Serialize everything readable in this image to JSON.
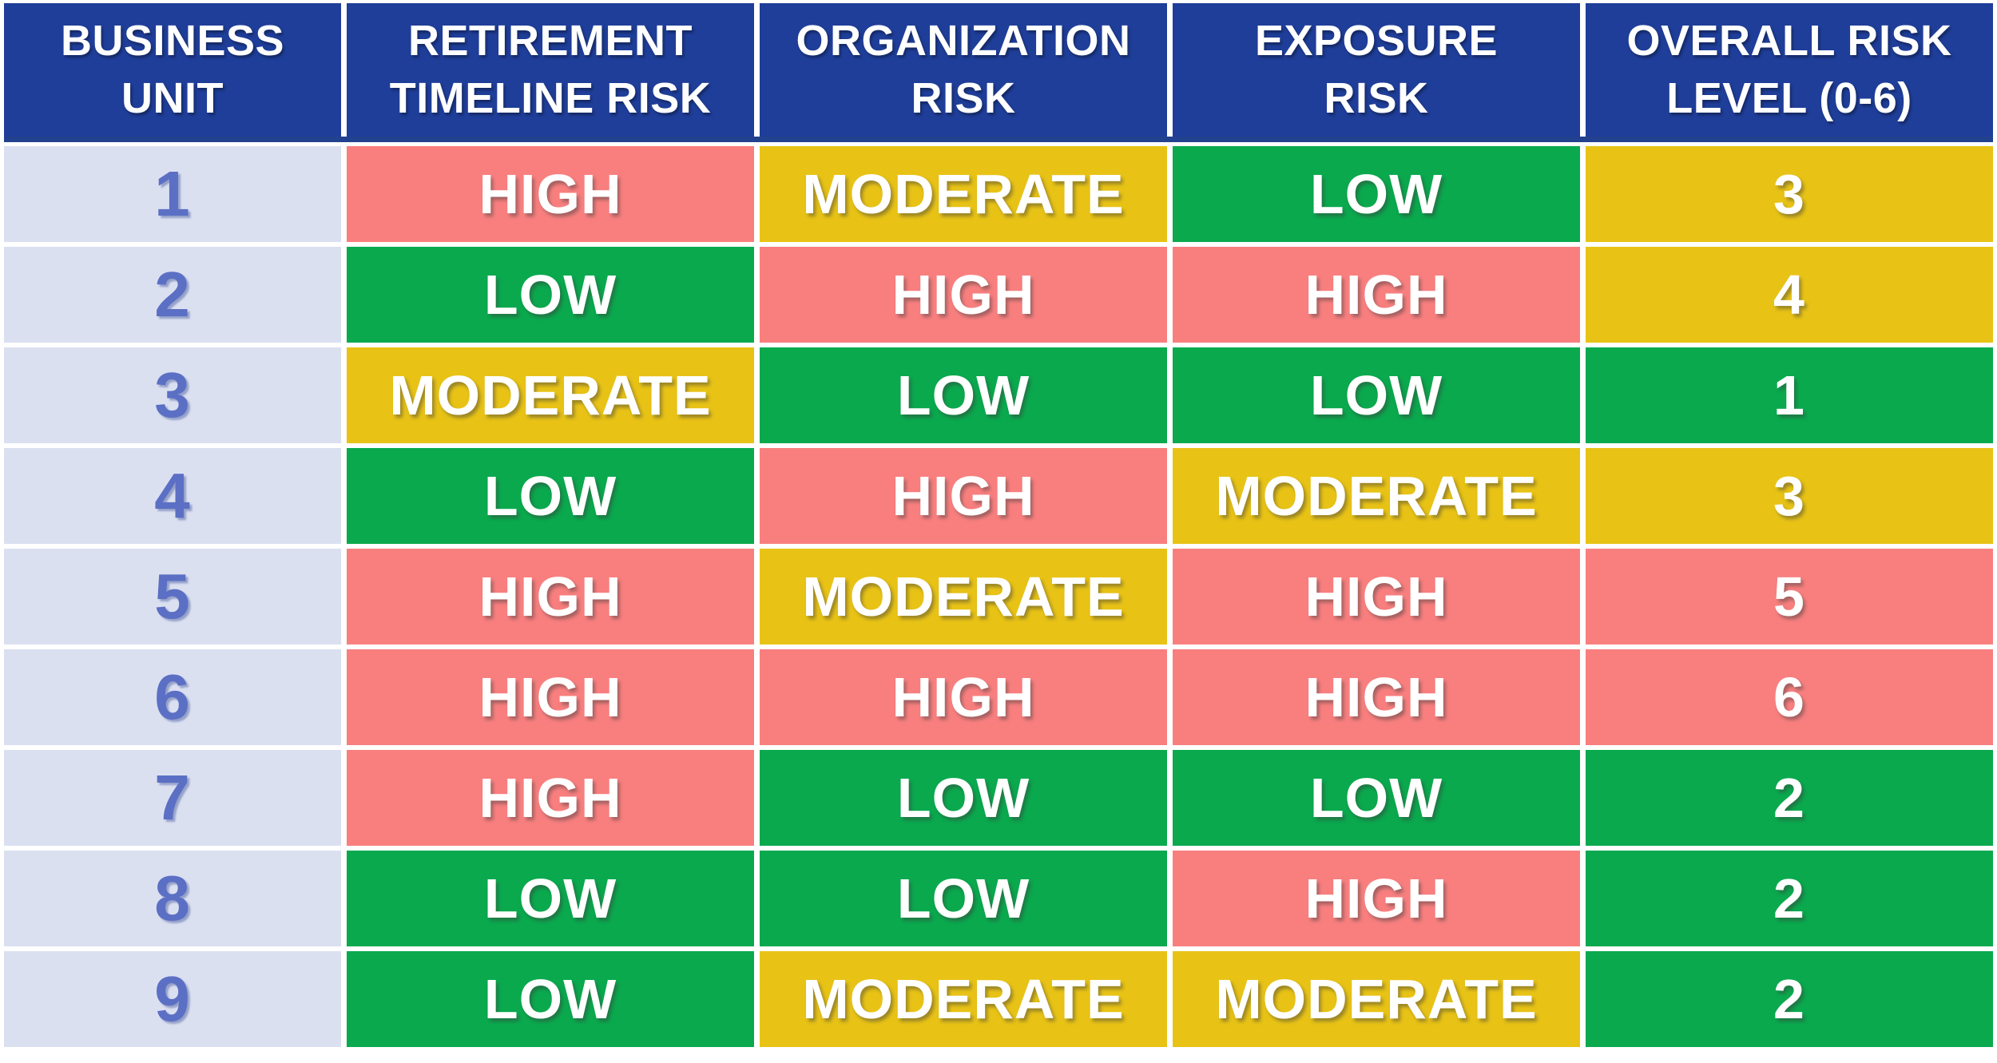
{
  "colors": {
    "header_bg": "#1f3e99",
    "header_accent": "#22418f",
    "unit_bg": "#dbe0f1",
    "unit_text": "#5b6fc4",
    "cell_text": "#ffffff",
    "high": "#f97f7f",
    "moderate": "#e8c316",
    "low": "#0aa94e"
  },
  "chart_data": {
    "type": "table",
    "columns": [
      "BUSINESS UNIT",
      "RETIREMENT TIMELINE RISK",
      "ORGANIZATION RISK",
      "EXPOSURE RISK",
      "OVERALL RISK LEVEL (0-6)"
    ],
    "headers": [
      {
        "label": "BUSINESS UNIT",
        "lines": [
          "BUSINESS",
          "UNIT"
        ]
      },
      {
        "label": "RETIREMENT TIMELINE RISK",
        "lines": [
          "RETIREMENT",
          "TIMELINE RISK"
        ]
      },
      {
        "label": "ORGANIZATION RISK",
        "lines": [
          "ORGANIZATION",
          "RISK"
        ]
      },
      {
        "label": "EXPOSURE RISK",
        "lines": [
          "EXPOSURE",
          "RISK"
        ]
      },
      {
        "label": "OVERALL RISK LEVEL (0-6)",
        "lines": [
          "OVERALL RISK",
          "LEVEL (0-6)"
        ]
      }
    ],
    "legend": {
      "high": "HIGH = salmon red",
      "moderate": "MODERATE = gold yellow",
      "low": "LOW = green",
      "overall_scale": "0-6, 1-2 green, 3-4 yellow, 5-6 red"
    },
    "rows": [
      {
        "unit": "1",
        "cells": [
          {
            "text": "HIGH",
            "level": "high"
          },
          {
            "text": "MODERATE",
            "level": "moderate"
          },
          {
            "text": "LOW",
            "level": "low"
          },
          {
            "text": "3",
            "level": "moderate"
          }
        ]
      },
      {
        "unit": "2",
        "cells": [
          {
            "text": "LOW",
            "level": "low"
          },
          {
            "text": "HIGH",
            "level": "high"
          },
          {
            "text": "HIGH",
            "level": "high"
          },
          {
            "text": "4",
            "level": "moderate"
          }
        ]
      },
      {
        "unit": "3",
        "cells": [
          {
            "text": "MODERATE",
            "level": "moderate"
          },
          {
            "text": "LOW",
            "level": "low"
          },
          {
            "text": "LOW",
            "level": "low"
          },
          {
            "text": "1",
            "level": "low"
          }
        ]
      },
      {
        "unit": "4",
        "cells": [
          {
            "text": "LOW",
            "level": "low"
          },
          {
            "text": "HIGH",
            "level": "high"
          },
          {
            "text": "MODERATE",
            "level": "moderate"
          },
          {
            "text": "3",
            "level": "moderate"
          }
        ]
      },
      {
        "unit": "5",
        "cells": [
          {
            "text": "HIGH",
            "level": "high"
          },
          {
            "text": "MODERATE",
            "level": "moderate"
          },
          {
            "text": "HIGH",
            "level": "high"
          },
          {
            "text": "5",
            "level": "high"
          }
        ]
      },
      {
        "unit": "6",
        "cells": [
          {
            "text": "HIGH",
            "level": "high"
          },
          {
            "text": "HIGH",
            "level": "high"
          },
          {
            "text": "HIGH",
            "level": "high"
          },
          {
            "text": "6",
            "level": "high"
          }
        ]
      },
      {
        "unit": "7",
        "cells": [
          {
            "text": "HIGH",
            "level": "high"
          },
          {
            "text": "LOW",
            "level": "low"
          },
          {
            "text": "LOW",
            "level": "low"
          },
          {
            "text": "2",
            "level": "low"
          }
        ]
      },
      {
        "unit": "8",
        "cells": [
          {
            "text": "LOW",
            "level": "low"
          },
          {
            "text": "LOW",
            "level": "low"
          },
          {
            "text": "HIGH",
            "level": "high"
          },
          {
            "text": "2",
            "level": "low"
          }
        ]
      },
      {
        "unit": "9",
        "cells": [
          {
            "text": "LOW",
            "level": "low"
          },
          {
            "text": "MODERATE",
            "level": "moderate"
          },
          {
            "text": "MODERATE",
            "level": "moderate"
          },
          {
            "text": "2",
            "level": "low"
          }
        ]
      }
    ]
  }
}
